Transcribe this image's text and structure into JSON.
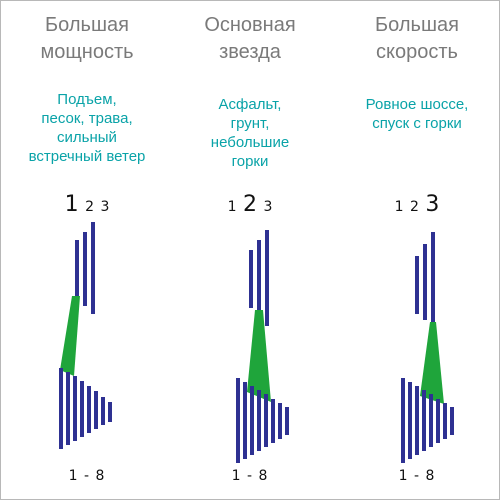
{
  "columns": [
    {
      "title": "Большая\nмощность",
      "description": "Подъем,\nпесок, трава,\nсильный\nвстречный ветер",
      "chainrings": [
        "1",
        "2",
        "3"
      ],
      "active_chainring": 1,
      "cassette_range": "1 - 8"
    },
    {
      "title": "Основная\nзвезда",
      "description": "Асфальт,\nгрунт,\nнебольшие\nгорки",
      "chainrings": [
        "1",
        "2",
        "3"
      ],
      "active_chainring": 2,
      "cassette_range": "1 - 8"
    },
    {
      "title": "Большая\nскорость",
      "description": "Ровное шоссе,\nспуск с горки",
      "chainrings": [
        "1",
        "2",
        "3"
      ],
      "active_chainring": 3,
      "cassette_range": "1 - 8"
    }
  ],
  "colors": {
    "title": "#7a7a7a",
    "description": "#0aa3a8",
    "sprocket": "#2e3192",
    "chain": "#1fa53b",
    "border": "#b8b8b8"
  }
}
